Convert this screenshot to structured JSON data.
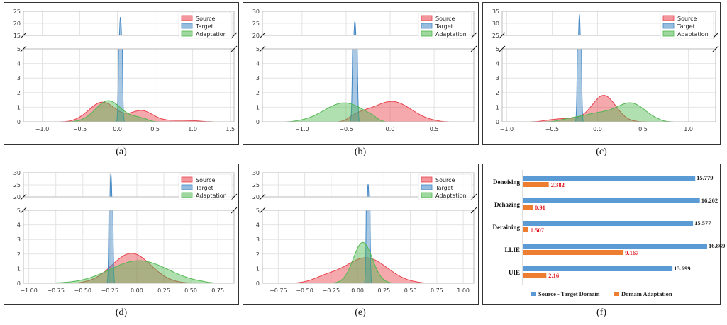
{
  "captions": [
    "(a)",
    "(b)",
    "(c)",
    "(d)",
    "(e)",
    "(f)"
  ],
  "colors": {
    "source": "#e8404a",
    "target": "#3f86c4",
    "adaptation": "#4fb84f",
    "bar_blue": "#5b9bd5",
    "bar_orange": "#ed7d31",
    "value_red": "#e0141c"
  },
  "chart_data": [
    {
      "type": "area",
      "title": "(a)",
      "legend": [
        "Source",
        "Target",
        "Adaptation"
      ],
      "legend_position": "top-right",
      "upper_yticks": [
        "15",
        "20",
        "25"
      ],
      "lower_yticks": [
        "0",
        "1",
        "2",
        "3",
        "4",
        "5"
      ],
      "ylim_upper": [
        15,
        25
      ],
      "ylim_lower": [
        0,
        5
      ],
      "xlim": [
        -1.25,
        1.55
      ],
      "xticks": [
        -1.0,
        -0.5,
        0.0,
        0.5,
        1.0,
        1.5
      ],
      "xtick_labels": [
        "−1.0",
        "−0.5",
        "0.0",
        "0.5",
        "1.0",
        "1.5"
      ],
      "series": [
        {
          "name": "Source",
          "range": [
            -0.85,
            1.3
          ],
          "peaks": [
            {
              "mu": -0.2,
              "sigma": 0.18,
              "a": 1.35
            },
            {
              "mu": 0.32,
              "sigma": 0.15,
              "a": 0.75
            },
            {
              "mu": 0.85,
              "sigma": 0.25,
              "a": 0.1
            }
          ]
        },
        {
          "name": "Target",
          "range": [
            -0.02,
            0.1
          ],
          "peaks": [
            {
              "mu": 0.04,
              "sigma": 0.015,
              "a": 22.5
            }
          ]
        },
        {
          "name": "Adaptation",
          "range": [
            -0.7,
            0.55
          ],
          "peaks": [
            {
              "mu": -0.12,
              "sigma": 0.17,
              "a": 1.45
            },
            {
              "mu": 0.28,
              "sigma": 0.12,
              "a": 0.25
            }
          ]
        }
      ]
    },
    {
      "type": "area",
      "title": "(b)",
      "legend": [
        "Source",
        "Target",
        "Adaptation"
      ],
      "legend_position": "top-right",
      "upper_yticks": [
        "20",
        "25",
        "30"
      ],
      "lower_yticks": [
        "0",
        "1",
        "2",
        "3",
        "4",
        "5"
      ],
      "ylim_upper": [
        20,
        30
      ],
      "ylim_lower": [
        0,
        5
      ],
      "xlim": [
        -1.45,
        0.95
      ],
      "xticks": [
        -1.0,
        -0.5,
        0.0,
        0.5
      ],
      "xtick_labels": [
        "−1.0",
        "−0.5",
        "0.0",
        "0.5"
      ],
      "series": [
        {
          "name": "Source",
          "range": [
            -0.6,
            0.68
          ],
          "peaks": [
            {
              "mu": 0.02,
              "sigma": 0.22,
              "a": 1.4
            },
            {
              "mu": -0.35,
              "sigma": 0.12,
              "a": 0.35
            }
          ]
        },
        {
          "name": "Target",
          "range": [
            -0.47,
            -0.33
          ],
          "peaks": [
            {
              "mu": -0.4,
              "sigma": 0.015,
              "a": 25.8
            }
          ]
        },
        {
          "name": "Adaptation",
          "range": [
            -1.2,
            -0.05
          ],
          "peaks": [
            {
              "mu": -0.52,
              "sigma": 0.23,
              "a": 1.3
            }
          ]
        }
      ]
    },
    {
      "type": "area",
      "title": "(c)",
      "legend": [
        "Source",
        "Target",
        "Adaptation"
      ],
      "legend_position": "top-right",
      "upper_yticks": [
        "25",
        "30",
        "35"
      ],
      "lower_yticks": [
        "0",
        "1",
        "2",
        "3",
        "4",
        "5"
      ],
      "ylim_upper": [
        25,
        35
      ],
      "ylim_lower": [
        0,
        5
      ],
      "xlim": [
        -1.05,
        1.3
      ],
      "xticks": [
        -1.0,
        -0.5,
        0.0,
        0.5,
        1.0
      ],
      "xtick_labels": [
        "−1.0",
        "−0.5",
        "0.0",
        "0.5",
        "1.0"
      ],
      "series": [
        {
          "name": "Source",
          "range": [
            -0.75,
            0.75
          ],
          "peaks": [
            {
              "mu": 0.07,
              "sigma": 0.13,
              "a": 1.8
            },
            {
              "mu": -0.35,
              "sigma": 0.18,
              "a": 0.22
            }
          ]
        },
        {
          "name": "Target",
          "range": [
            -0.25,
            -0.15
          ],
          "peaks": [
            {
              "mu": -0.2,
              "sigma": 0.012,
              "a": 33.5
            }
          ]
        },
        {
          "name": "Adaptation",
          "range": [
            -0.6,
            0.85
          ],
          "peaks": [
            {
              "mu": 0.37,
              "sigma": 0.16,
              "a": 1.25
            },
            {
              "mu": 0.0,
              "sigma": 0.17,
              "a": 0.55
            },
            {
              "mu": -0.3,
              "sigma": 0.12,
              "a": 0.15
            }
          ]
        }
      ]
    },
    {
      "type": "area",
      "title": "(d)",
      "legend": [
        "Source",
        "Target",
        "Adaptation"
      ],
      "legend_position": "top-right",
      "upper_yticks": [
        "20",
        "25",
        "30"
      ],
      "lower_yticks": [
        "0",
        "1",
        "2",
        "3",
        "4",
        "5"
      ],
      "ylim_upper": [
        20,
        30
      ],
      "ylim_lower": [
        0,
        5
      ],
      "xlim": [
        -1.05,
        0.9
      ],
      "xticks": [
        -1.0,
        -0.75,
        -0.5,
        -0.25,
        0.0,
        0.25,
        0.5,
        0.75
      ],
      "xtick_labels": [
        "−1.00",
        "−0.75",
        "−0.50",
        "−0.25",
        "0.00",
        "0.25",
        "0.50",
        "0.75"
      ],
      "series": [
        {
          "name": "Source",
          "range": [
            -0.65,
            0.7
          ],
          "peaks": [
            {
              "mu": -0.05,
              "sigma": 0.18,
              "a": 2.05
            }
          ]
        },
        {
          "name": "Target",
          "range": [
            -0.28,
            -0.2
          ],
          "peaks": [
            {
              "mu": -0.24,
              "sigma": 0.01,
              "a": 29.5
            }
          ]
        },
        {
          "name": "Adaptation",
          "range": [
            -0.95,
            0.82
          ],
          "peaks": [
            {
              "mu": 0.02,
              "sigma": 0.27,
              "a": 1.55
            }
          ]
        }
      ]
    },
    {
      "type": "area",
      "title": "(e)",
      "legend": [
        "Source",
        "Target",
        "Adaptation"
      ],
      "legend_position": "top-right",
      "upper_yticks": [
        "20",
        "25",
        "30"
      ],
      "lower_yticks": [
        "0",
        "1",
        "2",
        "3",
        "4",
        "5"
      ],
      "ylim_upper": [
        20,
        30
      ],
      "ylim_lower": [
        0,
        5
      ],
      "xlim": [
        -0.9,
        1.1
      ],
      "xticks": [
        -0.75,
        -0.5,
        -0.25,
        0.0,
        0.25,
        0.5,
        0.75,
        1.0
      ],
      "xtick_labels": [
        "−0.75",
        "−0.50",
        "−0.25",
        "0.00",
        "0.25",
        "0.50",
        "0.75",
        "1.00"
      ],
      "series": [
        {
          "name": "Source",
          "range": [
            -0.72,
            0.75
          ],
          "peaks": [
            {
              "mu": 0.08,
              "sigma": 0.2,
              "a": 1.75
            },
            {
              "mu": -0.3,
              "sigma": 0.12,
              "a": 0.35
            }
          ]
        },
        {
          "name": "Target",
          "range": [
            0.06,
            0.14
          ],
          "peaks": [
            {
              "mu": 0.1,
              "sigma": 0.01,
              "a": 25.2
            }
          ]
        },
        {
          "name": "Adaptation",
          "range": [
            -0.35,
            0.48
          ],
          "peaks": [
            {
              "mu": 0.05,
              "sigma": 0.09,
              "a": 2.8
            }
          ]
        }
      ]
    },
    {
      "type": "bar",
      "orientation": "horizontal",
      "title": "(f)",
      "categories": [
        "Denoising",
        "Dehazing",
        "Deraining",
        "LLIE",
        "UIE"
      ],
      "series": [
        {
          "name": "Source - Target Domain",
          "values": [
            15.779,
            16.202,
            15.577,
            16.869,
            13.699
          ],
          "labels": [
            "15.779",
            "16.202",
            "15.577",
            "16.869",
            "13.699"
          ]
        },
        {
          "name": "Domain Adaptation",
          "values": [
            2.382,
            0.91,
            0.507,
            9.167,
            2.16
          ],
          "labels": [
            "2.382",
            "0.91",
            "0.507",
            "9.167",
            "2.16"
          ]
        }
      ],
      "xlim": [
        0,
        17
      ],
      "legend": [
        "Source - Target Domain",
        "Domain Adaptation"
      ],
      "legend_position": "bottom"
    }
  ]
}
